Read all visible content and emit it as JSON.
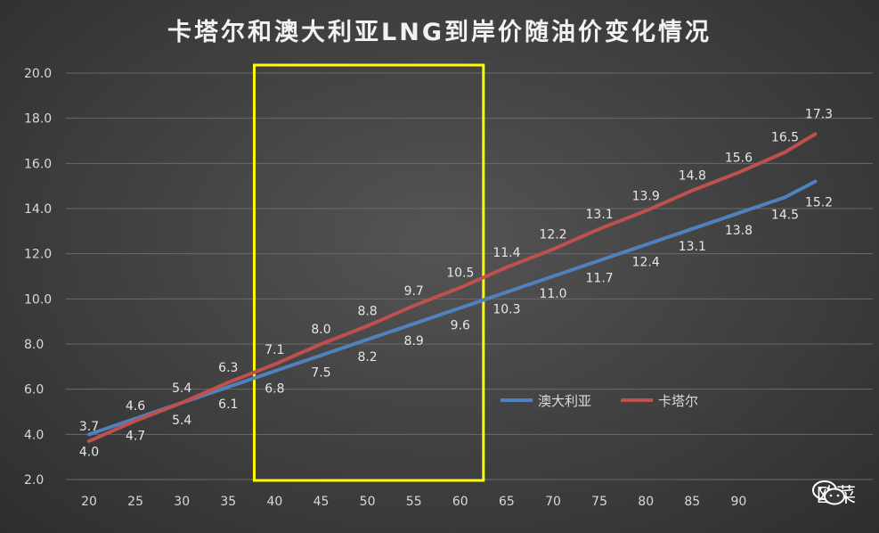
{
  "chart_data": {
    "type": "line",
    "title": "卡塔尔和澳大利亚LNG到岸价随油价变化情况",
    "x": [
      20,
      25,
      30,
      35,
      40,
      45,
      50,
      55,
      60,
      65,
      70,
      75,
      80,
      85,
      90,
      95
    ],
    "x_tick_labels": [
      "20",
      "25",
      "30",
      "35",
      "40",
      "45",
      "50",
      "55",
      "60",
      "65",
      "70",
      "75",
      "80",
      "85",
      "90",
      ""
    ],
    "ylim": [
      2.0,
      20.0
    ],
    "y_ticks": [
      "2.0",
      "4.0",
      "6.0",
      "8.0",
      "10.0",
      "12.0",
      "14.0",
      "16.0",
      "18.0",
      "20.0"
    ],
    "grid": true,
    "legend_position": "right-middle",
    "highlight_box": {
      "x_from": 37.8,
      "x_to": 62.5,
      "color": "#ffff00"
    },
    "series": [
      {
        "name": "澳大利亚",
        "color": "#4f81bd",
        "values": [
          4.0,
          4.7,
          5.4,
          6.1,
          6.8,
          7.5,
          8.2,
          8.9,
          9.6,
          10.3,
          11.0,
          11.7,
          12.4,
          13.1,
          13.8,
          14.5
        ],
        "labels": [
          "4.0",
          "4.7",
          "5.4",
          "6.1",
          "6.8",
          "7.5",
          "8.2",
          "8.9",
          "9.6",
          "10.3",
          "11.0",
          "11.7",
          "12.4",
          "13.1",
          "13.8",
          "14.5"
        ],
        "end_value": 15.2,
        "end_label": "15.2"
      },
      {
        "name": "卡塔尔",
        "color": "#c0504d",
        "values": [
          3.7,
          4.6,
          5.4,
          6.3,
          7.1,
          8.0,
          8.8,
          9.7,
          10.5,
          11.4,
          12.2,
          13.1,
          13.9,
          14.8,
          15.6,
          16.5
        ],
        "labels": [
          "3.7",
          "4.6",
          "5.4",
          "6.3",
          "7.1",
          "8.0",
          "8.8",
          "9.7",
          "10.5",
          "11.4",
          "12.2",
          "13.1",
          "13.9",
          "14.8",
          "15.6",
          "16.5"
        ],
        "end_value": 17.3,
        "end_label": "17.3"
      }
    ]
  },
  "watermark": {
    "text": "欧菜",
    "icon": "wechat-icon"
  }
}
